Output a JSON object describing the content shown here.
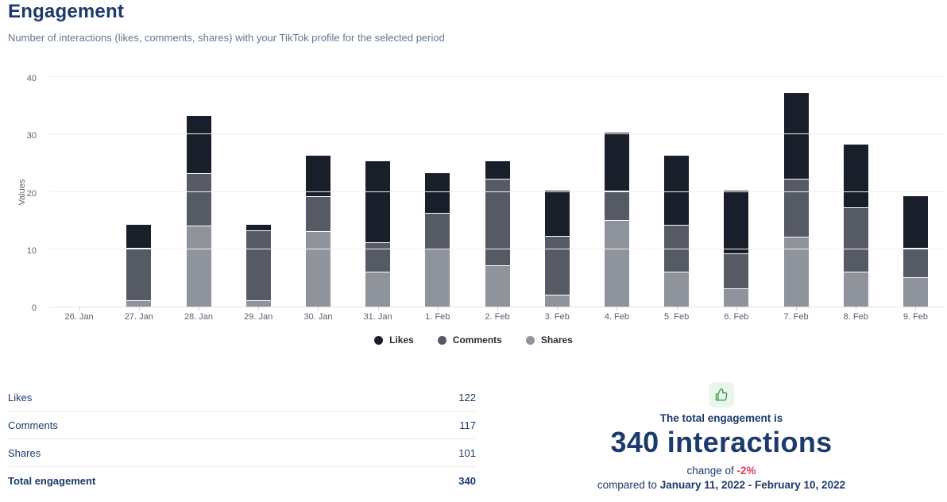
{
  "header": {
    "title": "Engagement",
    "subtitle": "Number of interactions (likes, comments, shares) with your TikTok profile for the selected period"
  },
  "chart_data": {
    "type": "bar",
    "stacked": true,
    "title": "Engagement",
    "xlabel": "",
    "ylabel": "Values",
    "ylim": [
      0,
      40
    ],
    "yticks": [
      0,
      10,
      20,
      30,
      40
    ],
    "grid": true,
    "legend_position": "bottom",
    "categories": [
      "26. Jan",
      "27. Jan",
      "28. Jan",
      "29. Jan",
      "30. Jan",
      "31. Jan",
      "1. Feb",
      "2. Feb",
      "3. Feb",
      "4. Feb",
      "5. Feb",
      "6. Feb",
      "7. Feb",
      "8. Feb",
      "9. Feb"
    ],
    "series": [
      {
        "name": "Likes",
        "color": "#191e2b",
        "values": [
          0,
          4,
          10,
          1,
          7,
          14,
          7,
          3,
          8,
          10,
          12,
          11,
          15,
          11,
          9
        ]
      },
      {
        "name": "Comments",
        "color": "#555a64",
        "values": [
          0,
          9,
          9,
          12,
          6,
          5,
          6,
          15,
          10,
          5,
          8,
          6,
          10,
          11,
          5
        ]
      },
      {
        "name": "Shares",
        "color": "#8f939b",
        "values": [
          0,
          1,
          14,
          1,
          13,
          6,
          10,
          7,
          2,
          15,
          6,
          3,
          12,
          6,
          5
        ]
      }
    ]
  },
  "table": {
    "rows": [
      {
        "label": "Likes",
        "value": "122"
      },
      {
        "label": "Comments",
        "value": "117"
      },
      {
        "label": "Shares",
        "value": "101"
      }
    ],
    "total": {
      "label": "Total engagement",
      "value": "340"
    }
  },
  "summary": {
    "icon": "thumbs-up-icon",
    "heading": "The total engagement is",
    "big_text": "340 interactions",
    "change_prefix": "change of ",
    "change_value": "-2%",
    "compare_prefix": "compared to ",
    "compare_range": "January 11, 2022 - February 10, 2022"
  },
  "colors": {
    "navy_text": "#1c3a6e",
    "subtitle_gray": "#64778f",
    "likes": "#191e2b",
    "comments": "#555a64",
    "shares": "#8f939b",
    "negative_change_red": "#e23e57",
    "thumb_green": "#43a047",
    "thumb_bg_green": "#e9f6ec",
    "gridline": "#f0f0f2",
    "axis_line": "#e3e4e8"
  }
}
